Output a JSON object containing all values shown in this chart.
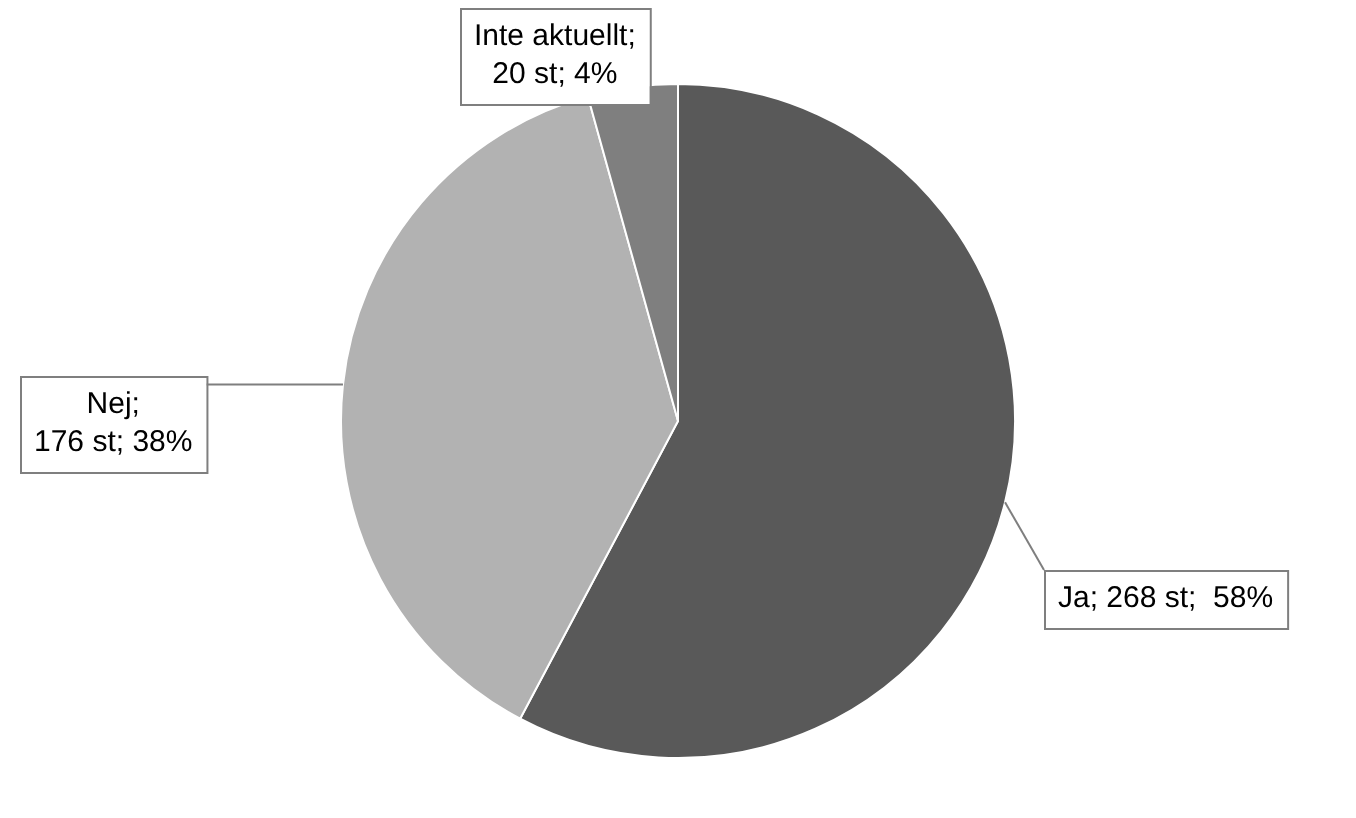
{
  "chart_data": {
    "type": "pie",
    "categories": [
      "Ja",
      "Nej",
      "Inte aktuellt"
    ],
    "values": [
      268,
      176,
      20
    ],
    "colors": [
      "#595959",
      "#b2b2b2",
      "#7f7f7f"
    ],
    "value_labels": [
      "; 268 st;  58%",
      ";\n176 st; 38%",
      ";\n20 st; 4%"
    ],
    "legend": false
  }
}
